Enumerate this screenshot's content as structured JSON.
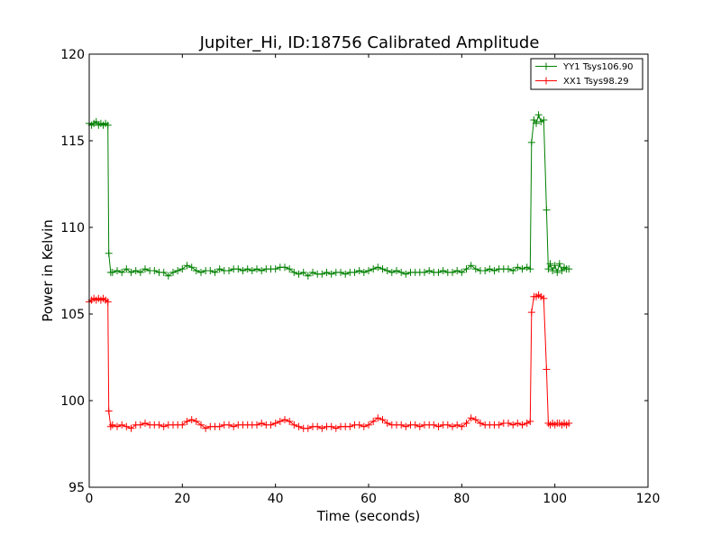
{
  "chart_data": {
    "type": "line",
    "title": "Jupiter_Hi, ID:18756 Calibrated Amplitude",
    "xlabel": "Time (seconds)",
    "ylabel": "Power in Kelvin",
    "xlim": [
      0,
      120
    ],
    "ylim": [
      95,
      120
    ],
    "xticks": [
      0,
      20,
      40,
      60,
      80,
      100,
      120
    ],
    "yticks": [
      95,
      100,
      105,
      110,
      115,
      120
    ],
    "grid": false,
    "legend_position": "top-right",
    "marker": "plus",
    "series": [
      {
        "name": "YY1 Tsys106.90",
        "color": "#008000",
        "x": [
          0,
          0.5,
          1,
          1.5,
          2,
          2.5,
          3,
          3.5,
          4,
          4.2,
          4.6,
          5,
          6,
          7,
          8,
          9,
          10,
          11,
          12,
          13,
          14,
          15,
          16,
          17,
          18,
          19,
          20,
          21,
          22,
          23,
          24,
          25,
          26,
          27,
          28,
          29,
          30,
          31,
          32,
          33,
          34,
          35,
          36,
          37,
          38,
          39,
          40,
          41,
          42,
          43,
          44,
          45,
          46,
          47,
          48,
          49,
          50,
          51,
          52,
          53,
          54,
          55,
          56,
          57,
          58,
          59,
          60,
          61,
          62,
          63,
          64,
          65,
          66,
          67,
          68,
          69,
          70,
          71,
          72,
          73,
          74,
          75,
          76,
          77,
          78,
          79,
          80,
          81,
          82,
          83,
          84,
          85,
          86,
          87,
          88,
          89,
          90,
          91,
          92,
          93,
          94,
          94.7,
          95,
          95.5,
          96,
          96.5,
          97,
          97.6,
          98.2,
          98.6,
          99,
          99.5,
          100,
          100.5,
          101,
          101.5,
          102,
          102.5,
          103
        ],
        "y": [
          116.0,
          115.9,
          116.0,
          116.1,
          115.9,
          116.0,
          115.9,
          116.0,
          115.9,
          108.5,
          107.4,
          107.4,
          107.5,
          107.4,
          107.6,
          107.4,
          107.5,
          107.4,
          107.6,
          107.5,
          107.5,
          107.4,
          107.4,
          107.2,
          107.4,
          107.5,
          107.6,
          107.8,
          107.7,
          107.5,
          107.4,
          107.5,
          107.5,
          107.4,
          107.6,
          107.5,
          107.5,
          107.6,
          107.6,
          107.5,
          107.6,
          107.5,
          107.6,
          107.5,
          107.6,
          107.6,
          107.6,
          107.7,
          107.7,
          107.6,
          107.4,
          107.3,
          107.4,
          107.2,
          107.4,
          107.3,
          107.3,
          107.4,
          107.3,
          107.4,
          107.4,
          107.3,
          107.4,
          107.4,
          107.5,
          107.4,
          107.5,
          107.6,
          107.7,
          107.6,
          107.5,
          107.4,
          107.5,
          107.4,
          107.3,
          107.4,
          107.4,
          107.4,
          107.4,
          107.5,
          107.4,
          107.4,
          107.5,
          107.4,
          107.4,
          107.5,
          107.4,
          107.6,
          107.8,
          107.6,
          107.5,
          107.5,
          107.6,
          107.5,
          107.6,
          107.6,
          107.6,
          107.5,
          107.7,
          107.6,
          107.7,
          107.6,
          114.9,
          116.2,
          116.0,
          116.5,
          116.1,
          116.2,
          111.0,
          107.6,
          107.9,
          107.5,
          107.8,
          107.4,
          107.9,
          107.5,
          107.7,
          107.6,
          107.6
        ],
        "data_labels": []
      },
      {
        "name": "XX1 Tsys98.29",
        "color": "#ff0000",
        "x": [
          0,
          0.5,
          1,
          1.5,
          2,
          2.5,
          3,
          3.5,
          4,
          4.2,
          4.6,
          5,
          6,
          7,
          8,
          9,
          10,
          11,
          12,
          13,
          14,
          15,
          16,
          17,
          18,
          19,
          20,
          21,
          22,
          23,
          24,
          25,
          26,
          27,
          28,
          29,
          30,
          31,
          32,
          33,
          34,
          35,
          36,
          37,
          38,
          39,
          40,
          41,
          42,
          43,
          44,
          45,
          46,
          47,
          48,
          49,
          50,
          51,
          52,
          53,
          54,
          55,
          56,
          57,
          58,
          59,
          60,
          61,
          62,
          63,
          64,
          65,
          66,
          67,
          68,
          69,
          70,
          71,
          72,
          73,
          74,
          75,
          76,
          77,
          78,
          79,
          80,
          81,
          82,
          83,
          84,
          85,
          86,
          87,
          88,
          89,
          90,
          91,
          92,
          93,
          94,
          94.7,
          95,
          95.5,
          96,
          96.5,
          97,
          97.6,
          98.2,
          98.6,
          99,
          99.5,
          100,
          100.5,
          101,
          101.5,
          102,
          102.5,
          103
        ],
        "y": [
          105.7,
          105.8,
          105.9,
          105.8,
          105.9,
          105.8,
          105.9,
          105.8,
          105.7,
          99.4,
          98.5,
          98.6,
          98.5,
          98.6,
          98.5,
          98.4,
          98.6,
          98.6,
          98.7,
          98.6,
          98.6,
          98.6,
          98.5,
          98.6,
          98.6,
          98.6,
          98.6,
          98.8,
          98.9,
          98.8,
          98.6,
          98.4,
          98.5,
          98.5,
          98.5,
          98.6,
          98.6,
          98.5,
          98.6,
          98.6,
          98.6,
          98.6,
          98.6,
          98.7,
          98.6,
          98.6,
          98.7,
          98.8,
          98.9,
          98.8,
          98.6,
          98.5,
          98.4,
          98.4,
          98.5,
          98.5,
          98.4,
          98.5,
          98.5,
          98.4,
          98.5,
          98.5,
          98.5,
          98.6,
          98.6,
          98.5,
          98.6,
          98.8,
          99.0,
          98.9,
          98.7,
          98.6,
          98.6,
          98.6,
          98.5,
          98.6,
          98.6,
          98.5,
          98.6,
          98.6,
          98.6,
          98.5,
          98.6,
          98.6,
          98.5,
          98.6,
          98.5,
          98.7,
          99.0,
          98.9,
          98.7,
          98.6,
          98.6,
          98.6,
          98.6,
          98.7,
          98.7,
          98.6,
          98.7,
          98.6,
          98.7,
          98.8,
          105.1,
          106.0,
          106.0,
          106.1,
          106.0,
          105.9,
          101.8,
          98.7,
          98.6,
          98.7,
          98.6,
          98.7,
          98.7,
          98.6,
          98.7,
          98.6,
          98.7
        ],
        "data_labels": []
      }
    ]
  }
}
